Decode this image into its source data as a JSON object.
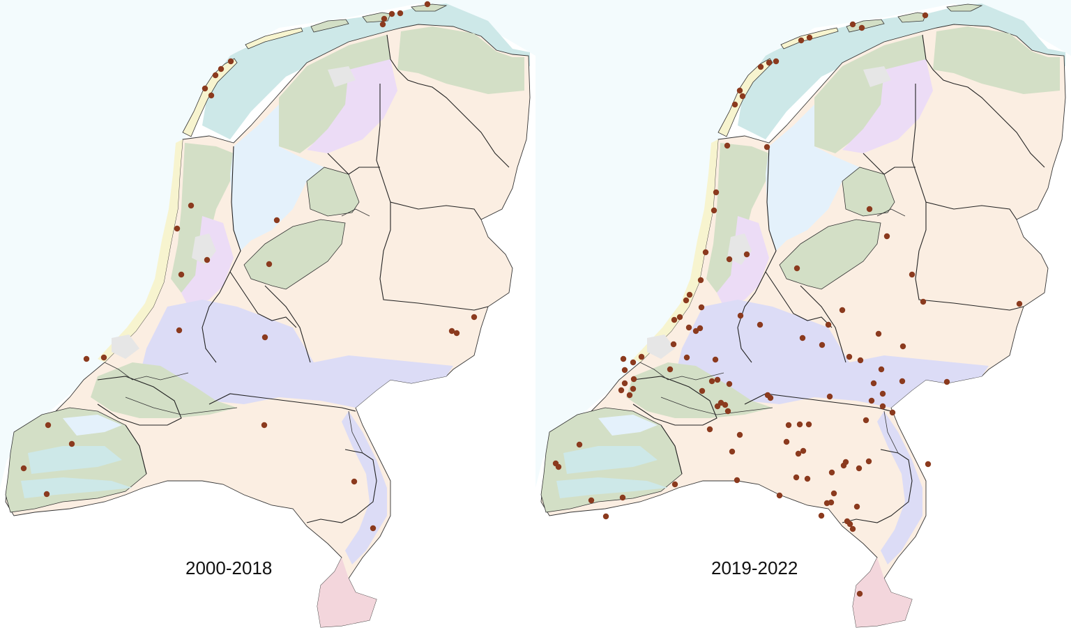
{
  "maps": [
    {
      "label": "2000-2018",
      "observations": [
        [
          549,
          35
        ],
        [
          551,
          27
        ],
        [
          562,
          20
        ],
        [
          574,
          19
        ],
        [
          613,
          6
        ],
        [
          294,
          127
        ],
        [
          303,
          137
        ],
        [
          309,
          108
        ],
        [
          317,
          99
        ],
        [
          331,
          88
        ],
        [
          274,
          295
        ],
        [
          254,
          328
        ],
        [
          297,
          373
        ],
        [
          260,
          394
        ],
        [
          397,
          316
        ],
        [
          386,
          379
        ],
        [
          257,
          474
        ],
        [
          380,
          484
        ],
        [
          680,
          455
        ],
        [
          648,
          475
        ],
        [
          655,
          478
        ],
        [
          124,
          515
        ],
        [
          149,
          513
        ],
        [
          379,
          610
        ],
        [
          69,
          610
        ],
        [
          103,
          637
        ],
        [
          34,
          672
        ],
        [
          67,
          709
        ],
        [
          508,
          691
        ],
        [
          535,
          758
        ]
      ]
    },
    {
      "label": "2019-2022",
      "observations": [
        [
          1223,
          35
        ],
        [
          1236,
          40
        ],
        [
          1161,
          54
        ],
        [
          1149,
          58
        ],
        [
          1091,
          96
        ],
        [
          1103,
          90
        ],
        [
          1113,
          88
        ],
        [
          1061,
          130
        ],
        [
          1065,
          138
        ],
        [
          1054,
          150
        ],
        [
          1327,
          22
        ],
        [
          1043,
          209
        ],
        [
          1100,
          211
        ],
        [
          1027,
          276
        ],
        [
          1024,
          302
        ],
        [
          1247,
          300
        ],
        [
          1272,
          339
        ],
        [
          1012,
          362
        ],
        [
          1046,
          372
        ],
        [
          1071,
          365
        ],
        [
          1143,
          385
        ],
        [
          1005,
          402
        ],
        [
          989,
          423
        ],
        [
          984,
          431
        ],
        [
          1308,
          394
        ],
        [
          1062,
          453
        ],
        [
          1090,
          466
        ],
        [
          1006,
          441
        ],
        [
          988,
          470
        ],
        [
          998,
          475
        ],
        [
          1004,
          471
        ],
        [
          967,
          459
        ],
        [
          975,
          455
        ],
        [
          1151,
          485
        ],
        [
          1179,
          495
        ],
        [
          1188,
          466
        ],
        [
          1208,
          445
        ],
        [
          1260,
          479
        ],
        [
          1295,
          497
        ],
        [
          1324,
          433
        ],
        [
          1462,
          436
        ],
        [
          894,
          515
        ],
        [
          896,
          531
        ],
        [
          908,
          520
        ],
        [
          920,
          512
        ],
        [
          896,
          550
        ],
        [
          908,
          558
        ],
        [
          909,
          544
        ],
        [
          966,
          494
        ],
        [
          985,
          513
        ],
        [
          961,
          530
        ],
        [
          1026,
          516
        ],
        [
          1021,
          547
        ],
        [
          1029,
          545
        ],
        [
          1007,
          561
        ],
        [
          1046,
          551
        ],
        [
          1218,
          512
        ],
        [
          1234,
          517
        ],
        [
          1264,
          530
        ],
        [
          1253,
          550
        ],
        [
          1294,
          547
        ],
        [
          1358,
          548
        ],
        [
          891,
          560
        ],
        [
          903,
          567
        ],
        [
          1034,
          578
        ],
        [
          1040,
          581
        ],
        [
          1029,
          583
        ],
        [
          1044,
          590
        ],
        [
          1101,
          567
        ],
        [
          1105,
          571
        ],
        [
          1190,
          569
        ],
        [
          1250,
          575
        ],
        [
          1266,
          565
        ],
        [
          1266,
          583
        ],
        [
          1280,
          592
        ],
        [
          1242,
          603
        ],
        [
          1131,
          610
        ],
        [
          1147,
          609
        ],
        [
          1160,
          609
        ],
        [
          1018,
          616
        ],
        [
          1061,
          624
        ],
        [
          1128,
          634
        ],
        [
          1145,
          651
        ],
        [
          1152,
          647
        ],
        [
          1210,
          668
        ],
        [
          1232,
          672
        ],
        [
          1246,
          662
        ],
        [
          1213,
          663
        ],
        [
          1050,
          648
        ],
        [
          831,
          638
        ],
        [
          797,
          665
        ],
        [
          801,
          670
        ],
        [
          968,
          695
        ],
        [
          1057,
          689
        ],
        [
          1142,
          685
        ],
        [
          1158,
          687
        ],
        [
          1331,
          666
        ],
        [
          1193,
          678
        ],
        [
          848,
          718
        ],
        [
          893,
          714
        ],
        [
          869,
          741
        ],
        [
          1118,
          711
        ],
        [
          1196,
          708
        ],
        [
          1186,
          722
        ],
        [
          1178,
          740
        ],
        [
          1192,
          721
        ],
        [
          1229,
          727
        ],
        [
          1215,
          748
        ],
        [
          1223,
          759
        ],
        [
          1219,
          752
        ],
        [
          1233,
          852
        ]
      ]
    }
  ],
  "legend_colors": {
    "sea": "#cde8e8",
    "water": "#e4f1fb",
    "clay": "#d3dfc6",
    "peat": "#ecdcf6",
    "river_clay": "#dcdcf6",
    "sand": "#fbeee2",
    "dunes": "#f7f4cf",
    "loess": "#f3d6dc",
    "urban": "#e6e6e6",
    "marker": "#8b3a1e"
  }
}
